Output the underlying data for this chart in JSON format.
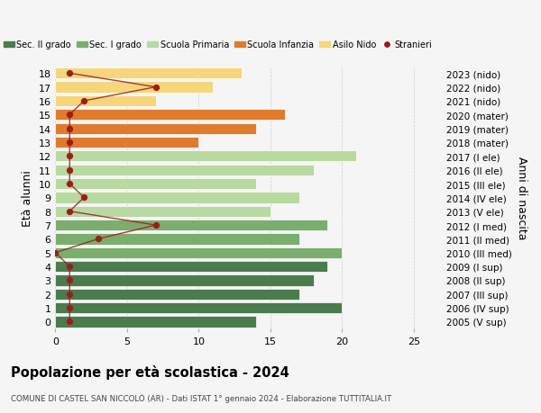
{
  "ages": [
    18,
    17,
    16,
    15,
    14,
    13,
    12,
    11,
    10,
    9,
    8,
    7,
    6,
    5,
    4,
    3,
    2,
    1,
    0
  ],
  "values": [
    14,
    20,
    17,
    18,
    19,
    20,
    17,
    19,
    15,
    17,
    14,
    18,
    21,
    10,
    14,
    16,
    7,
    11,
    13
  ],
  "right_labels": [
    "2005 (V sup)",
    "2006 (IV sup)",
    "2007 (III sup)",
    "2008 (II sup)",
    "2009 (I sup)",
    "2010 (III med)",
    "2011 (II med)",
    "2012 (I med)",
    "2013 (V ele)",
    "2014 (IV ele)",
    "2015 (III ele)",
    "2016 (II ele)",
    "2017 (I ele)",
    "2018 (mater)",
    "2019 (mater)",
    "2020 (mater)",
    "2021 (nido)",
    "2022 (nido)",
    "2023 (nido)"
  ],
  "bar_colors": [
    "#4a7c4e",
    "#4a7c4e",
    "#4a7c4e",
    "#4a7c4e",
    "#4a7c4e",
    "#7aad6e",
    "#7aad6e",
    "#7aad6e",
    "#b8d9a0",
    "#b8d9a0",
    "#b8d9a0",
    "#b8d9a0",
    "#b8d9a0",
    "#e07b2e",
    "#e07b2e",
    "#e07b2e",
    "#f5d67a",
    "#f5d67a",
    "#f5d67a"
  ],
  "legend_labels": [
    "Sec. II grado",
    "Sec. I grado",
    "Scuola Primaria",
    "Scuola Infanzia",
    "Asilo Nido",
    "Stranieri"
  ],
  "legend_colors": [
    "#4a7c4e",
    "#7aad6e",
    "#b8d9a0",
    "#e07b2e",
    "#f5d67a",
    "#9e1c1c"
  ],
  "title": "Popolazione per età scolastica - 2024",
  "subtitle": "COMUNE DI CASTEL SAN NICCOLÒ (AR) - Dati ISTAT 1° gennaio 2024 - Elaborazione TUTTITALIA.IT",
  "ylabel_left": "Età alunni",
  "ylabel_right": "Anni di nascita",
  "xlim": [
    0,
    27
  ],
  "stranieri_x": [
    1,
    1,
    1,
    1,
    1,
    0,
    3,
    7,
    1,
    2,
    1,
    1,
    1,
    1,
    1,
    1,
    2,
    7,
    1
  ],
  "stranieri_color": "#9e1c1c",
  "bg_color": "#f5f5f5"
}
